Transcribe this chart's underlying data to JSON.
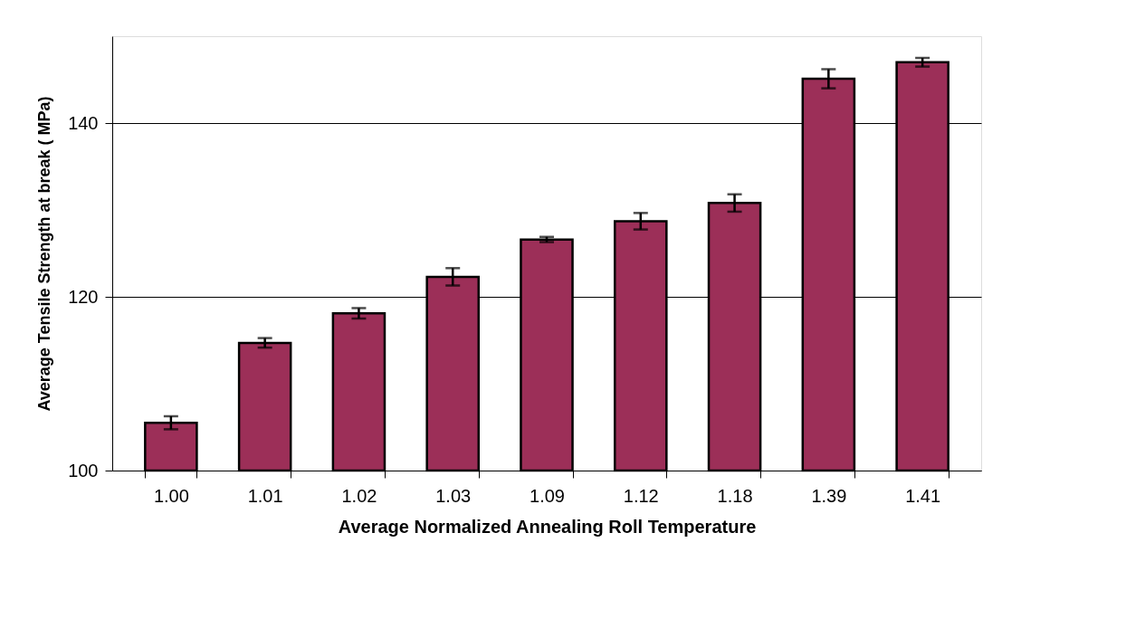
{
  "chart_data": {
    "type": "bar",
    "xlabel": "Average Normalized Annealing Roll Temperature",
    "ylabel": "Average Tensile Strength at break ( MPa)",
    "categories": [
      "1.00",
      "1.01",
      "1.02",
      "1.03",
      "1.09",
      "1.12",
      "1.18",
      "1.39",
      "1.41"
    ],
    "series": [
      {
        "color": "#9c2f58",
        "values": [
          105.5,
          114.7,
          118.1,
          122.3,
          126.6,
          128.7,
          130.8,
          145.1,
          147.0
        ],
        "errors": [
          0.75,
          0.55,
          0.6,
          1.0,
          0.3,
          0.95,
          1.0,
          1.1,
          0.5
        ]
      }
    ],
    "ylim": [
      100,
      150
    ],
    "yticks": [
      100,
      120,
      140
    ],
    "grid": "y"
  }
}
